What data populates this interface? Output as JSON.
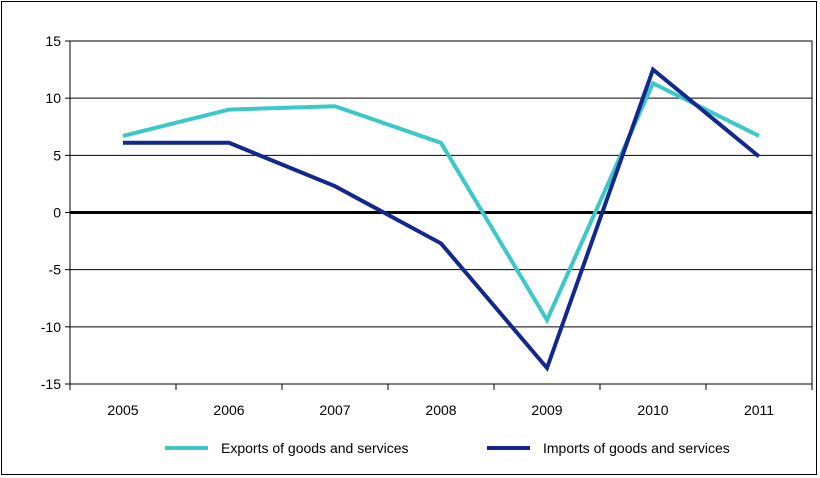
{
  "chart_data": {
    "type": "line",
    "title": "",
    "xlabel": "",
    "ylabel": "",
    "categories": [
      "2005",
      "2006",
      "2007",
      "2008",
      "2009",
      "2010",
      "2011"
    ],
    "ylim": [
      -15,
      15
    ],
    "yticks": [
      "15",
      "10",
      "5",
      "0",
      "-5",
      "-10",
      "-15"
    ],
    "grid": true,
    "legend_position": "bottom",
    "series": [
      {
        "name": "Exports of goods and services",
        "color": "#3cc8c8",
        "values": [
          6.7,
          9.0,
          9.3,
          6.1,
          -9.4,
          11.3,
          6.7
        ]
      },
      {
        "name": "Imports of goods and services",
        "color": "#12288c",
        "values": [
          6.1,
          6.1,
          2.3,
          -2.7,
          -13.6,
          12.5,
          4.9
        ]
      }
    ]
  }
}
